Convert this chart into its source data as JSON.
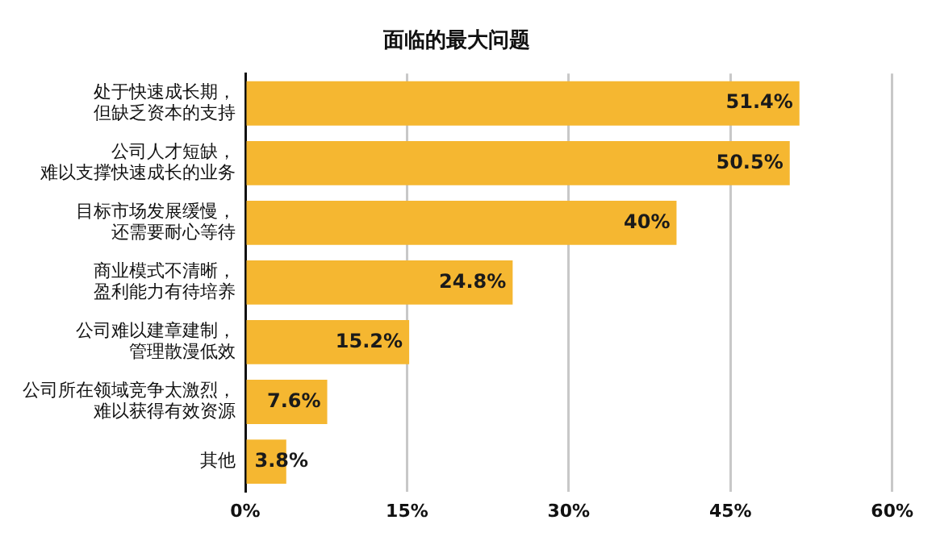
{
  "chart_data": {
    "type": "bar",
    "orientation": "horizontal",
    "title": "面临的最大问题",
    "categories": [
      "处于快速成长期，但缺乏资本的支持",
      "公司人才短缺，难以支撑快速成长的业务",
      "目标市场发展缓慢，还需要耐心等待",
      "商业模式不清晰，盈利能力有待培养",
      "公司难以建章建制，管理散漫低效",
      "公司所在领域竞争太激烈，难以获得有效资源",
      "其他"
    ],
    "values": [
      51.4,
      50.5,
      40,
      24.8,
      15.2,
      7.6,
      3.8
    ],
    "value_labels": [
      "51.4%",
      "50.5%",
      "40%",
      "24.8%",
      "15.2%",
      "7.6%",
      "3.8%"
    ],
    "color": "#f5b731",
    "xlim": [
      0,
      60
    ],
    "xticks": [
      {
        "value": 0,
        "label": "0%"
      },
      {
        "value": 15,
        "label": "15%"
      },
      {
        "value": 30,
        "label": "30%"
      },
      {
        "value": 45,
        "label": "45%"
      },
      {
        "value": 60,
        "label": "60%"
      }
    ],
    "grid": "x",
    "legend": false
  }
}
